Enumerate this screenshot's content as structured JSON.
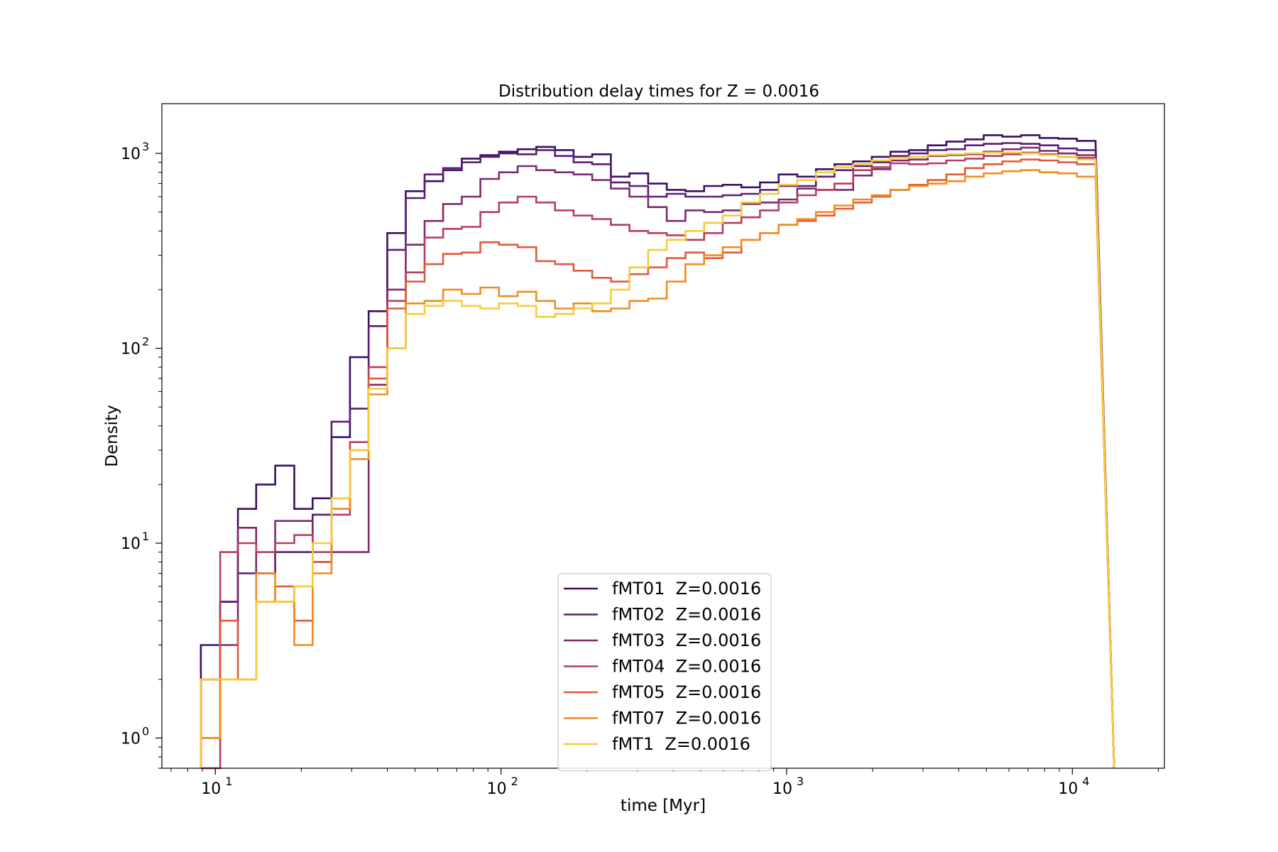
{
  "chart_data": {
    "type": "line",
    "title": "Distribution delay times for Z = 0.0016",
    "xlabel": "time [Myr]",
    "ylabel": "Density",
    "xscale": "log",
    "yscale": "log",
    "xlim": [
      6.5,
      21000
    ],
    "ylim": [
      0.7,
      1800
    ],
    "x_ticks": [
      {
        "value": 10,
        "base": "10",
        "exp": "1"
      },
      {
        "value": 100,
        "base": "10",
        "exp": "2"
      },
      {
        "value": 1000,
        "base": "10",
        "exp": "3"
      },
      {
        "value": 10000,
        "base": "10",
        "exp": "4"
      }
    ],
    "y_ticks": [
      {
        "value": 1,
        "base": "10",
        "exp": "0"
      },
      {
        "value": 10,
        "base": "10",
        "exp": "1"
      },
      {
        "value": 100,
        "base": "10",
        "exp": "2"
      },
      {
        "value": 1000,
        "base": "10",
        "exp": "3"
      }
    ],
    "grid": false,
    "legend_position": "lower-center",
    "step_style": "histogram",
    "bin_edges": [
      8.9,
      10.4,
      12.0,
      13.9,
      16.2,
      18.9,
      21.9,
      25.5,
      29.6,
      34.4,
      40.0,
      46.4,
      54.0,
      62.7,
      72.9,
      84.7,
      98.4,
      114.4,
      132.9,
      154.5,
      179.5,
      208.6,
      242.4,
      281.7,
      327.4,
      380.5,
      442.2,
      513.9,
      597.2,
      694.0,
      806.5,
      937.2,
      1089.2,
      1265.8,
      1471.0,
      1709.5,
      1986.6,
      2308.6,
      2682.9,
      3117.8,
      3623.2,
      4210.6,
      4893.2,
      5686.4,
      6608.2,
      7679.4,
      8924.3,
      10371.0,
      12052.1,
      14005.9
    ],
    "series": [
      {
        "name": "fMT01  Z=0.0016",
        "color": "#3a1060",
        "values": [
          3,
          5,
          15,
          20,
          25,
          15,
          17,
          35,
          90,
          155,
          390,
          640,
          720,
          820,
          940,
          980,
          1020,
          1050,
          1080,
          1040,
          960,
          990,
          760,
          790,
          700,
          650,
          640,
          680,
          690,
          670,
          710,
          780,
          760,
          830,
          880,
          910,
          960,
          1020,
          1040,
          1100,
          1150,
          1180,
          1240,
          1220,
          1240,
          1200,
          1190,
          1160
        ]
      },
      {
        "name": "fMT02  Z=0.0016",
        "color": "#5a1e72",
        "values": [
          2,
          5,
          7,
          7,
          9,
          9,
          14,
          42,
          49,
          130,
          320,
          590,
          780,
          840,
          900,
          960,
          1000,
          990,
          1040,
          970,
          900,
          880,
          710,
          680,
          600,
          620,
          600,
          600,
          610,
          620,
          650,
          680,
          680,
          760,
          820,
          860,
          900,
          970,
          1000,
          1040,
          1050,
          1100,
          1120,
          1130,
          1120,
          1100,
          1060,
          1040
        ]
      },
      {
        "name": "fMT03  Z=0.0016",
        "color": "#7d2a6e",
        "values": [
          2,
          3,
          12,
          7,
          13,
          13,
          8,
          9,
          9,
          65,
          200,
          340,
          450,
          550,
          600,
          740,
          800,
          860,
          820,
          800,
          780,
          730,
          660,
          600,
          530,
          450,
          510,
          500,
          510,
          550,
          560,
          580,
          660,
          650,
          650,
          770,
          830,
          920,
          930,
          970,
          980,
          990,
          1020,
          1050,
          1070,
          1030,
          1000,
          980
        ]
      },
      {
        "name": "fMT04  Z=0.0016",
        "color": "#b73d5f",
        "values": [
          0.7,
          9,
          10,
          9,
          10,
          11,
          9,
          14,
          33,
          80,
          175,
          245,
          370,
          410,
          420,
          500,
          560,
          600,
          560,
          510,
          480,
          460,
          430,
          400,
          390,
          380,
          360,
          390,
          440,
          470,
          510,
          560,
          610,
          650,
          700,
          820,
          850,
          890,
          880,
          890,
          920,
          940,
          970,
          990,
          1010,
          990,
          960,
          950
        ]
      },
      {
        "name": "fMT05  Z=0.0016",
        "color": "#e05a3d",
        "values": [
          1,
          4,
          2,
          5,
          6,
          4,
          8,
          15,
          30,
          70,
          160,
          220,
          270,
          305,
          310,
          350,
          340,
          330,
          280,
          270,
          250,
          230,
          220,
          240,
          260,
          290,
          310,
          290,
          310,
          360,
          390,
          430,
          450,
          480,
          520,
          560,
          600,
          650,
          690,
          730,
          780,
          840,
          880,
          910,
          930,
          920,
          900,
          880
        ]
      },
      {
        "name": "fMT07  Z=0.0016",
        "color": "#f08c1e",
        "values": [
          1,
          2,
          2,
          7,
          5,
          3,
          7,
          15,
          27,
          58,
          100,
          170,
          175,
          200,
          190,
          205,
          185,
          195,
          175,
          160,
          170,
          155,
          160,
          175,
          180,
          220,
          270,
          300,
          330,
          360,
          390,
          430,
          460,
          500,
          540,
          580,
          610,
          650,
          680,
          700,
          720,
          760,
          790,
          810,
          820,
          800,
          790,
          760
        ]
      },
      {
        "name": "fMT1  Z=0.0016",
        "color": "#f5cc3a",
        "values": [
          2,
          2,
          2,
          5,
          5,
          6,
          10,
          17,
          30,
          62,
          100,
          150,
          165,
          175,
          165,
          160,
          170,
          165,
          145,
          150,
          160,
          170,
          200,
          260,
          320,
          360,
          400,
          440,
          480,
          560,
          620,
          690,
          730,
          800,
          850,
          880,
          920,
          950,
          960,
          980,
          990,
          1000,
          1010,
          1010,
          1000,
          980,
          960,
          930
        ]
      }
    ]
  }
}
